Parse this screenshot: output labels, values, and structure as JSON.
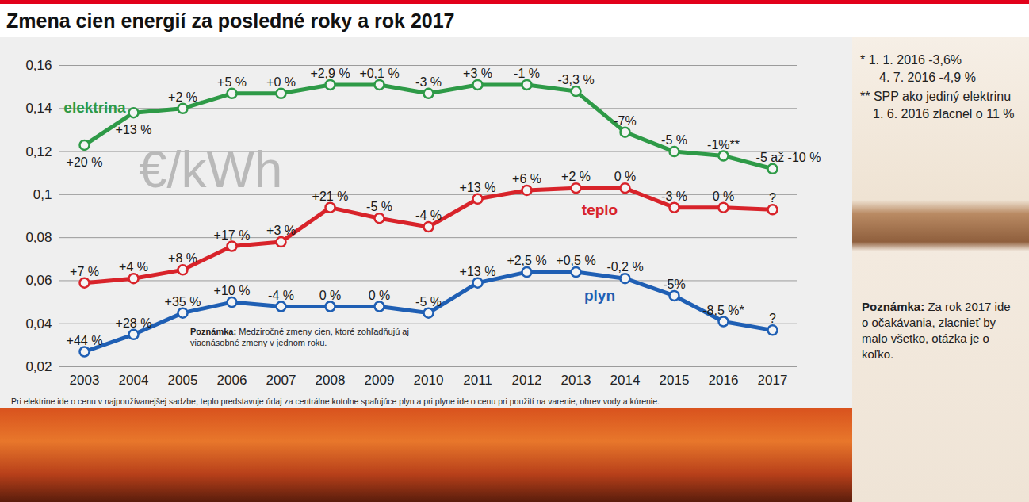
{
  "chart_data": {
    "type": "line",
    "title": "Zmena cien energií za posledné roky a rok 2017",
    "unit_label": "€/kWh",
    "categories": [
      "2003",
      "2004",
      "2005",
      "2006",
      "2007",
      "2008",
      "2009",
      "2010",
      "2011",
      "2012",
      "2013",
      "2014",
      "2015",
      "2016",
      "2017"
    ],
    "series": [
      {
        "name": "elektrina",
        "color": "#2e9a47",
        "values": [
          0.123,
          0.138,
          0.14,
          0.147,
          0.147,
          0.151,
          0.151,
          0.147,
          0.151,
          0.151,
          0.148,
          0.129,
          0.12,
          0.118,
          0.112
        ],
        "annotations": [
          "+20 %",
          "+13 %",
          "+2 %",
          "+5 %",
          "+0 %",
          "+2,9 %",
          "+0,1 %",
          "-3 %",
          "+3 %",
          "-1 %",
          "-3,3 %",
          "-7%",
          "-5 %",
          "-1%**",
          "-5 až -10 %"
        ]
      },
      {
        "name": "teplo",
        "color": "#d8232a",
        "values": [
          0.059,
          0.061,
          0.065,
          0.076,
          0.078,
          0.094,
          0.089,
          0.085,
          0.098,
          0.102,
          0.103,
          0.103,
          0.094,
          0.094,
          0.093
        ],
        "annotations": [
          "+7 %",
          "+4 %",
          "+8 %",
          "+17 %",
          "+3 %",
          "+21 %",
          "-5 %",
          "-4 %",
          "+13 %",
          "+6 %",
          "+2 %",
          "0 %",
          "-3 %",
          "0 %",
          "?"
        ]
      },
      {
        "name": "plyn",
        "color": "#1f5fb4",
        "values": [
          0.027,
          0.035,
          0.045,
          0.05,
          0.048,
          0.048,
          0.048,
          0.045,
          0.059,
          0.064,
          0.064,
          0.061,
          0.053,
          0.041,
          0.037
        ],
        "annotations": [
          "+44 %",
          "+28 %",
          "+35 %",
          "+10 %",
          "-4 %",
          "0 %",
          "0 %",
          "-5 %",
          "+13 %",
          "+2,5 %",
          "+0,5 %",
          "-0,2 %",
          "-5%",
          "-8,5 %*",
          "?"
        ]
      }
    ],
    "ylim": [
      0.02,
      0.16
    ],
    "yticks": [
      {
        "value": 0.02,
        "label": "0,02"
      },
      {
        "value": 0.04,
        "label": "0,04"
      },
      {
        "value": 0.06,
        "label": "0,06"
      },
      {
        "value": 0.08,
        "label": "0,08"
      },
      {
        "value": 0.1,
        "label": "0,1"
      },
      {
        "value": 0.12,
        "label": "0,12"
      },
      {
        "value": 0.14,
        "label": "0,14"
      },
      {
        "value": 0.16,
        "label": "0,16"
      }
    ],
    "grid": true,
    "marker": "circle",
    "note": {
      "title": "Poznámka:",
      "text": "Medziročné zmeny cien, ktoré zohľadňujú aj viacnásobné zmeny v jednom roku."
    },
    "caption": "Pri elektrine ide o cenu v najpoužívanejšej sadzbe, teplo predstavuje údaj za centrálne kotolne spaľujúce plyn a pri plyne ide o cenu pri použití na varenie, ohrev vody a kúrenie.",
    "side_notes": [
      "* 1. 1. 2016 -3,6%",
      "4. 7. 2016 -4,9 %",
      "** SPP ako jediný elektrinu 1. 6. 2016 zlacnel o 11 %"
    ],
    "side_note": {
      "title": "Poznámka:",
      "text": "Za rok 2017 ide o očakávania, zlacnieť by malo všetko, otázka je o koľko."
    }
  }
}
